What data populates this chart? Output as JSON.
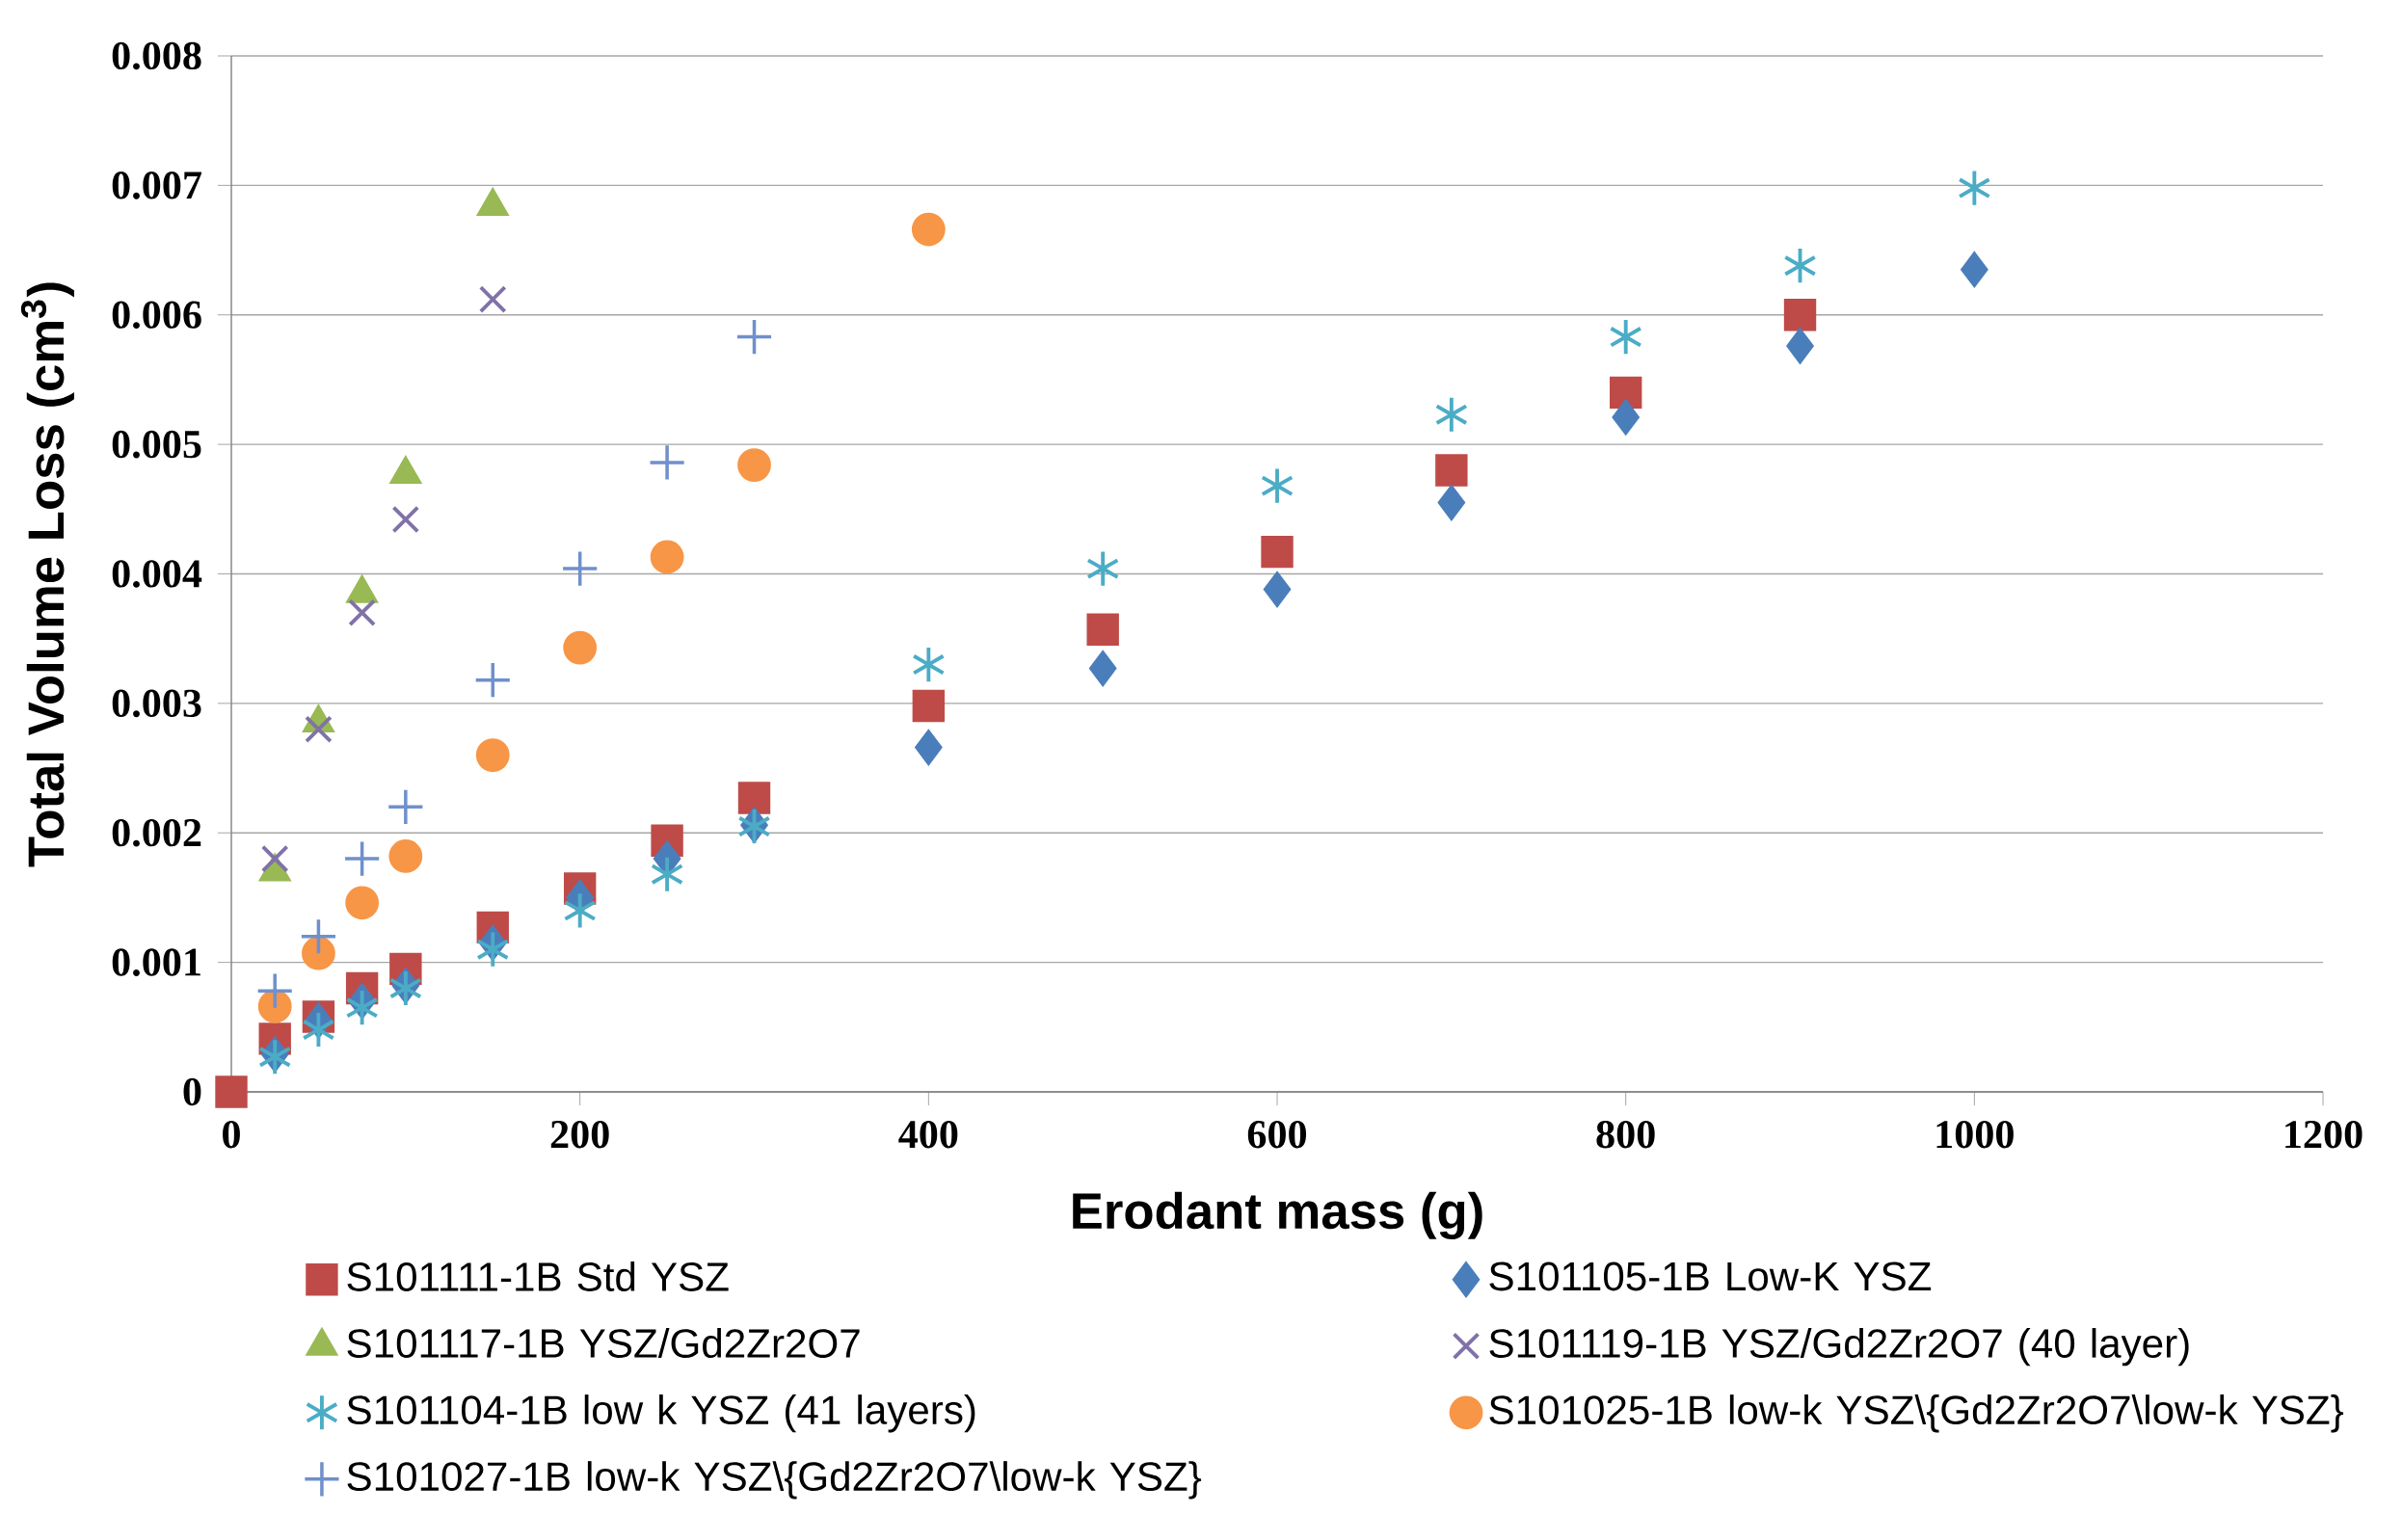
{
  "chart_data": {
    "type": "scatter",
    "xlabel": "Erodant mass (g)",
    "ylabel": "Total Volume Loss (cm$^{3}$)",
    "xlim": [
      0,
      1200
    ],
    "xticks": [
      0,
      200,
      400,
      600,
      800,
      1000,
      1200
    ],
    "ylim": [
      0,
      0.008
    ],
    "yticks": [
      0,
      0.001,
      0.002,
      0.003,
      0.004,
      0.005,
      0.006,
      0.007,
      0.008
    ],
    "grid": "y",
    "legend": "bottom",
    "series": [
      {
        "name": "S101111-1B Std YSZ",
        "color": "#be4b48",
        "marker": "square",
        "x": [
          0,
          25,
          50,
          75,
          100,
          150,
          200,
          250,
          300,
          400,
          500,
          600,
          700,
          800,
          900
        ],
        "values": [
          0,
          0.00041,
          0.00058,
          0.0008,
          0.00095,
          0.00127,
          0.00157,
          0.00194,
          0.00227,
          0.00298,
          0.00357,
          0.00417,
          0.0048,
          0.0054,
          0.006
        ]
      },
      {
        "name": "S101105-1B Low-K YSZ",
        "color": "#4a7ebb",
        "marker": "diamond",
        "x": [
          25,
          50,
          75,
          100,
          150,
          200,
          250,
          300,
          400,
          500,
          600,
          700,
          800,
          900,
          1000
        ],
        "values": [
          0.00029,
          0.00055,
          0.0007,
          0.00082,
          0.00115,
          0.0015,
          0.0018,
          0.00206,
          0.00266,
          0.00327,
          0.00388,
          0.00455,
          0.00521,
          0.00576,
          0.00635
        ]
      },
      {
        "name": "S101117-1B YSZ/Gd2Zr2O7",
        "color": "#98b954",
        "marker": "triangle",
        "x": [
          25,
          50,
          75,
          100,
          150
        ],
        "values": [
          0.0017,
          0.00285,
          0.00385,
          0.00477,
          0.00684
        ]
      },
      {
        "name": "S101119-1B YSZ/Gd2Zr2O7 (40 layer)",
        "color": "#8072a8",
        "marker": "cross",
        "x": [
          25,
          50,
          75,
          100,
          150
        ],
        "values": [
          0.0018,
          0.0028,
          0.0037,
          0.00442,
          0.00612
        ]
      },
      {
        "name": "S101104-1B low k YSZ (41 layers)",
        "color": "#4bacc6",
        "x": [
          25,
          50,
          75,
          100,
          150,
          200,
          250,
          300,
          400,
          500,
          600,
          700,
          800,
          900,
          1000
        ],
        "values": [
          0.00027,
          0.00048,
          0.00065,
          0.0008,
          0.0011,
          0.0014,
          0.00168,
          0.00205,
          0.0033,
          0.00404,
          0.00468,
          0.00523,
          0.00583,
          0.00638,
          0.00698
        ]
      },
      {
        "name": "S101025-1B low-k YSZ\\{Gd2Zr2O7\\low-k YSZ}",
        "color": "#f79646",
        "marker": "circle",
        "x": [
          25,
          50,
          75,
          100,
          150,
          200,
          250,
          300,
          400
        ],
        "values": [
          0.00066,
          0.00107,
          0.00146,
          0.00182,
          0.0026,
          0.00343,
          0.00413,
          0.00484,
          0.00666
        ]
      },
      {
        "name": "S101027-1B low-k YSZ\\{Gd2Zr2O7\\low-k YSZ}",
        "color": "#7090cc",
        "x": [
          25,
          50,
          75,
          100,
          150,
          200,
          250,
          300
        ],
        "values": [
          0.00078,
          0.0012,
          0.0018,
          0.0022,
          0.00318,
          0.00404,
          0.00486,
          0.00583
        ]
      }
    ]
  }
}
